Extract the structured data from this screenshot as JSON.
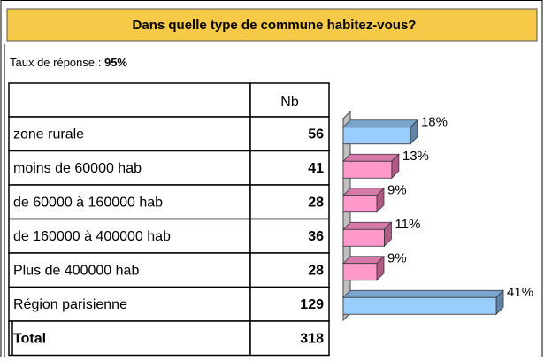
{
  "title": "Dans quelle type de commune habitez-vous?",
  "response_rate_label": "Taux de réponse : ",
  "response_rate": "95%",
  "table": {
    "header": "Nb",
    "rows": [
      [
        "zone rurale",
        56
      ],
      [
        "moins de 60000 hab",
        41
      ],
      [
        "de 60000 à 160000 hab",
        28
      ],
      [
        "de 160000 à 400000 hab",
        36
      ],
      [
        "Plus de 400000 hab",
        28
      ],
      [
        "Région parisienne",
        129
      ]
    ],
    "total": [
      "Total",
      318
    ]
  },
  "chart_data": {
    "type": "bar",
    "values": [
      18,
      13,
      9,
      11,
      9,
      41
    ],
    "value_labels": [
      "18%",
      "13%",
      "9%",
      "11%",
      "9%",
      "41%"
    ],
    "colors": [
      "#99ccff",
      "#ff99cc",
      "#ff99cc",
      "#ff99cc",
      "#ff99cc",
      "#99ccff"
    ]
  }
}
